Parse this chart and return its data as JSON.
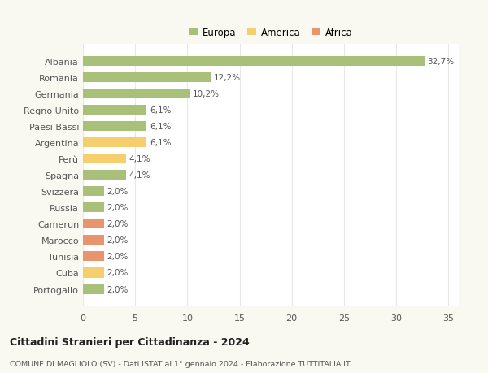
{
  "countries": [
    "Albania",
    "Romania",
    "Germania",
    "Regno Unito",
    "Paesi Bassi",
    "Argentina",
    "Perù",
    "Spagna",
    "Svizzera",
    "Russia",
    "Camerun",
    "Marocco",
    "Tunisia",
    "Cuba",
    "Portogallo"
  ],
  "values": [
    32.7,
    12.2,
    10.2,
    6.1,
    6.1,
    6.1,
    4.1,
    4.1,
    2.0,
    2.0,
    2.0,
    2.0,
    2.0,
    2.0,
    2.0
  ],
  "labels": [
    "32,7%",
    "12,2%",
    "10,2%",
    "6,1%",
    "6,1%",
    "6,1%",
    "4,1%",
    "4,1%",
    "2,0%",
    "2,0%",
    "2,0%",
    "2,0%",
    "2,0%",
    "2,0%",
    "2,0%"
  ],
  "continents": [
    "Europa",
    "Europa",
    "Europa",
    "Europa",
    "Europa",
    "America",
    "America",
    "Europa",
    "Europa",
    "Europa",
    "Africa",
    "Africa",
    "Africa",
    "America",
    "Europa"
  ],
  "colors": {
    "Europa": "#a8c07a",
    "America": "#f5cf6e",
    "Africa": "#e8956d"
  },
  "xlim": [
    0,
    36
  ],
  "xticks": [
    0,
    5,
    10,
    15,
    20,
    25,
    30,
    35
  ],
  "title": "Cittadini Stranieri per Cittadinanza - 2024",
  "subtitle": "COMUNE DI MAGLIOLO (SV) - Dati ISTAT al 1° gennaio 2024 - Elaborazione TUTTITALIA.IT",
  "background_color": "#f9f9f2",
  "plot_background": "#ffffff",
  "grid_color": "#e8e8e8",
  "bar_height": 0.6
}
